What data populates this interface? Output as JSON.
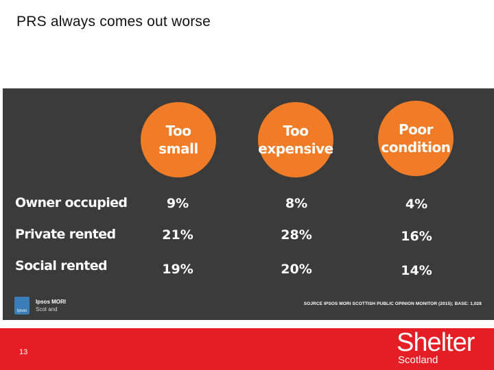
{
  "slide": {
    "title": "PRS always comes out worse",
    "page_number": "13"
  },
  "table": {
    "columns": [
      "Too\nsmall",
      "Too\nexpensive",
      "Poor\ncondition"
    ],
    "rows": [
      {
        "label": "Owner occupied",
        "values": [
          "9%",
          "8%",
          "4%"
        ]
      },
      {
        "label": "Private rented",
        "values": [
          "21%",
          "28%",
          "16%"
        ]
      },
      {
        "label": "Social rented",
        "values": [
          "19%",
          "20%",
          "14%"
        ]
      }
    ],
    "accent_color": "#f07c28",
    "panel_color": "#3b3b3b"
  },
  "footer_panel": {
    "logo_label": "Ipsos",
    "logo_name": "Ipsos MORI",
    "logo_sub": "Scot and",
    "source": "SOJRCE IPSOS MORI SCOTTISH PUBLIC OPINION MONITOR (2015); BASE: 1,028"
  },
  "brand": {
    "name": "Shelter",
    "sub": "Scotland",
    "bar_color": "#e51e25"
  }
}
